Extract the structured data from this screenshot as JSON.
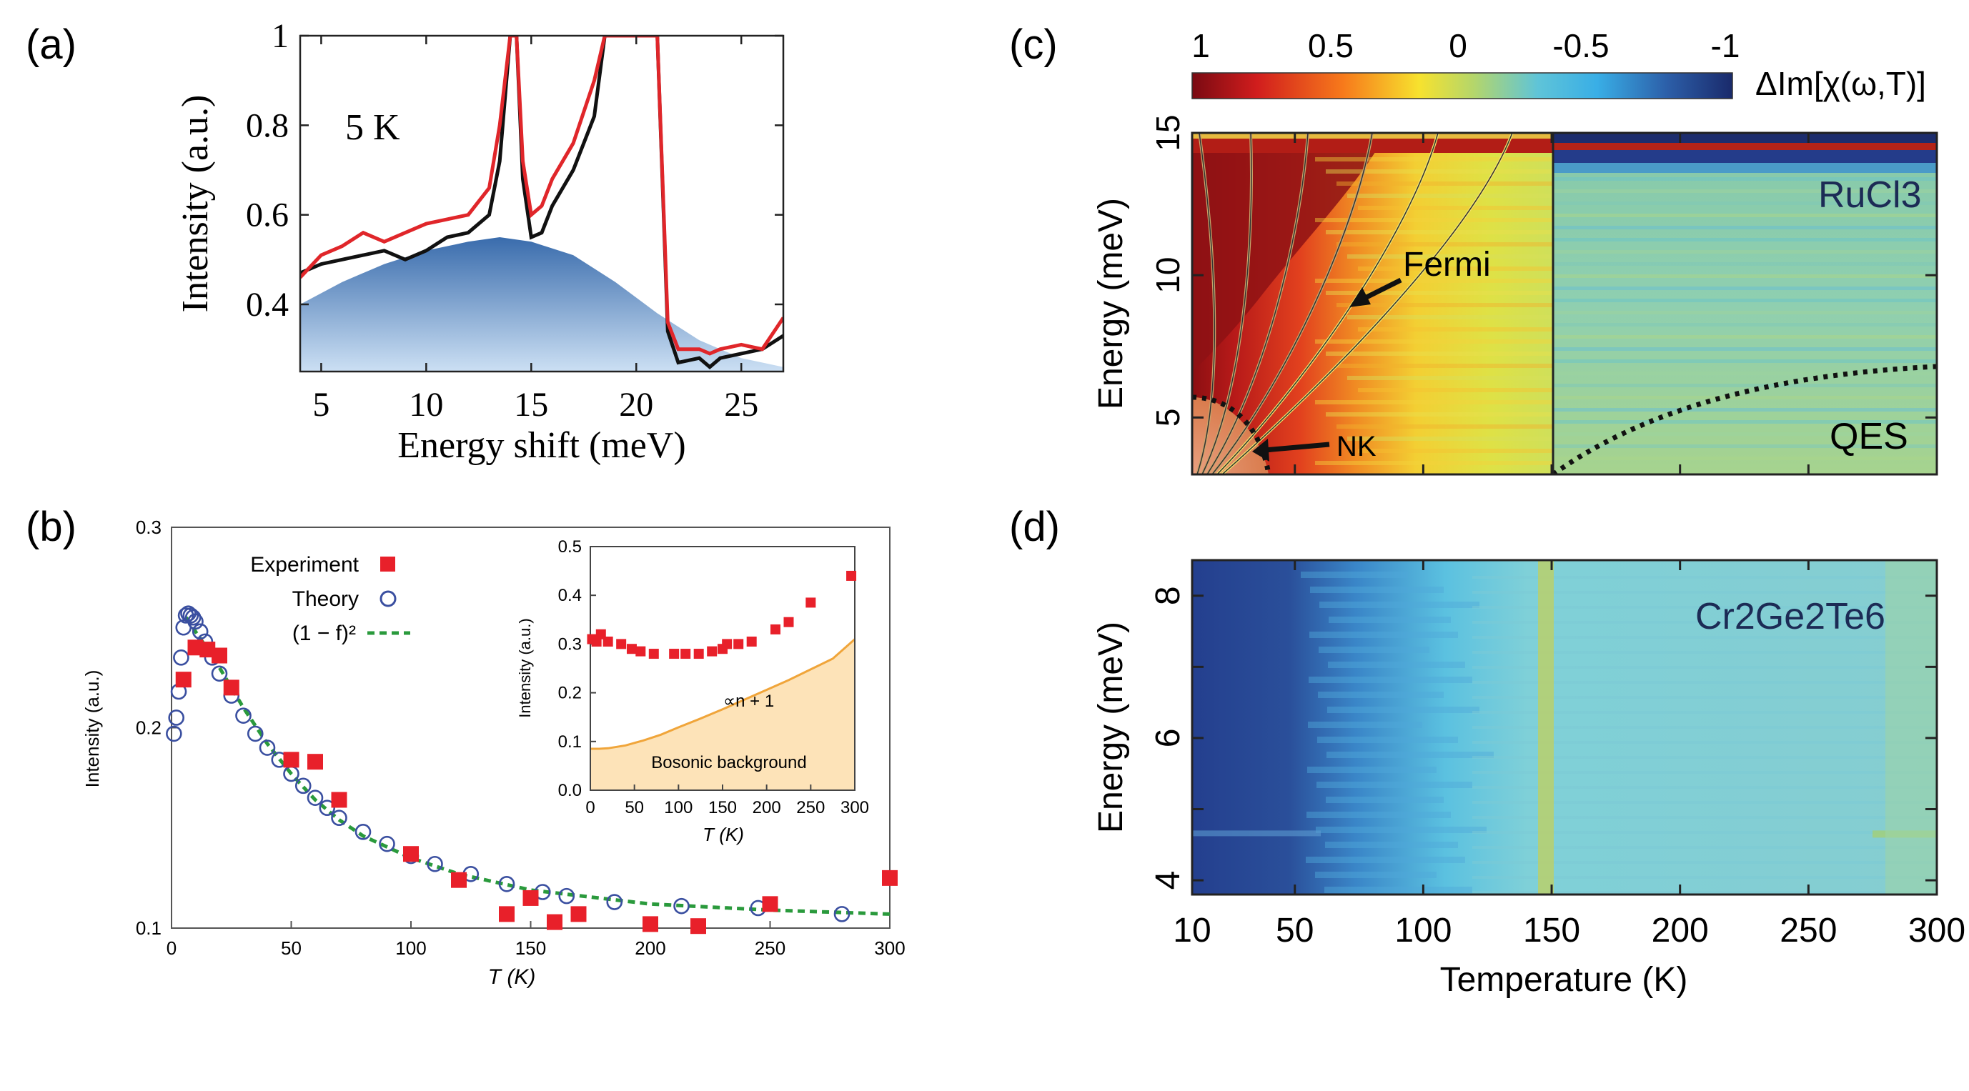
{
  "panels": {
    "a": {
      "label": "(a)"
    },
    "b": {
      "label": "(b)"
    },
    "c": {
      "label": "(c)"
    },
    "d": {
      "label": "(d)"
    }
  },
  "colors": {
    "black_curve": "#111111",
    "red_curve": "#e0262a",
    "blue_fill_dark": "#2f64a8",
    "blue_fill_light": "#bcd6ef",
    "experiment": "#e8202a",
    "theory": "#3a4fa0",
    "fit": "#2a9a3c",
    "inset_fill": "#fde3b8",
    "inset_line": "#f0a53a"
  },
  "chart_data": [
    {
      "id": "a",
      "type": "line",
      "xlabel": "Energy shift (meV)",
      "ylabel": "Intensity (a.u.)",
      "xlim": [
        4,
        27
      ],
      "ylim": [
        0.25,
        1.0
      ],
      "xticks": [
        "5",
        "10",
        "15",
        "20",
        "25"
      ],
      "yticks": [
        "1",
        "0.8",
        "0.6",
        "0.4"
      ],
      "annotation": "5 K",
      "series": [
        {
          "name": "black",
          "x": [
            4,
            5,
            6,
            7,
            8,
            9,
            10,
            11,
            12,
            13,
            13.5,
            14,
            14.3,
            14.6,
            15,
            15.5,
            16,
            17,
            18,
            18.5,
            19,
            21,
            21.5,
            22,
            23,
            23.5,
            24,
            25,
            26,
            27
          ],
          "y": [
            0.47,
            0.49,
            0.5,
            0.51,
            0.52,
            0.5,
            0.52,
            0.55,
            0.56,
            0.6,
            0.72,
            1.0,
            1.0,
            0.68,
            0.55,
            0.56,
            0.62,
            0.7,
            0.82,
            1.0,
            1.0,
            1.0,
            0.34,
            0.27,
            0.28,
            0.26,
            0.28,
            0.29,
            0.3,
            0.33
          ]
        },
        {
          "name": "red",
          "x": [
            4,
            5,
            6,
            7,
            8,
            9,
            10,
            11,
            12,
            13,
            13.5,
            14,
            14.3,
            14.6,
            15,
            15.5,
            16,
            17,
            18,
            18.5,
            19,
            21,
            21.5,
            22,
            23,
            23.5,
            24,
            25,
            26,
            27
          ],
          "y": [
            0.46,
            0.51,
            0.53,
            0.56,
            0.54,
            0.56,
            0.58,
            0.59,
            0.6,
            0.66,
            0.8,
            1.0,
            1.0,
            0.72,
            0.6,
            0.62,
            0.68,
            0.76,
            0.9,
            1.0,
            1.0,
            1.0,
            0.36,
            0.3,
            0.3,
            0.29,
            0.3,
            0.31,
            0.3,
            0.37
          ]
        },
        {
          "name": "bosonic background (filled)",
          "x": [
            4,
            6,
            8,
            10,
            12,
            13.5,
            15,
            17,
            19,
            21,
            23,
            25,
            27
          ],
          "y": [
            0.4,
            0.45,
            0.49,
            0.52,
            0.54,
            0.55,
            0.54,
            0.51,
            0.45,
            0.38,
            0.32,
            0.28,
            0.26
          ]
        }
      ]
    },
    {
      "id": "b",
      "type": "scatter",
      "xlabel": "T (K)",
      "ylabel": "Intensity (a.u.)",
      "xlim": [
        0,
        300
      ],
      "ylim": [
        0.1,
        0.3
      ],
      "xticks": [
        "0",
        "50",
        "100",
        "150",
        "200",
        "250",
        "300"
      ],
      "yticks": [
        "0.1",
        "0.2",
        "0.3"
      ],
      "legend": [
        "Experiment",
        "Theory",
        "(1 − f)²"
      ],
      "series": [
        {
          "name": "Experiment",
          "x": [
            5,
            10,
            15,
            20,
            25,
            50,
            60,
            70,
            100,
            120,
            140,
            150,
            160,
            170,
            200,
            220,
            250,
            300
          ],
          "y": [
            0.224,
            0.24,
            0.239,
            0.236,
            0.22,
            0.184,
            0.183,
            0.164,
            0.137,
            0.124,
            0.107,
            0.115,
            0.103,
            0.107,
            0.102,
            0.101,
            0.112,
            0.125
          ]
        },
        {
          "name": "Theory",
          "x": [
            1,
            2,
            3,
            4,
            5,
            6,
            7,
            8,
            9,
            10,
            12,
            14,
            17,
            20,
            25,
            30,
            35,
            40,
            45,
            50,
            55,
            60,
            65,
            70,
            80,
            90,
            100,
            110,
            125,
            140,
            155,
            165,
            185,
            213,
            245,
            280
          ],
          "y": [
            0.197,
            0.205,
            0.218,
            0.235,
            0.25,
            0.256,
            0.257,
            0.256,
            0.255,
            0.253,
            0.248,
            0.243,
            0.235,
            0.227,
            0.216,
            0.206,
            0.197,
            0.19,
            0.184,
            0.177,
            0.171,
            0.165,
            0.16,
            0.155,
            0.148,
            0.142,
            0.136,
            0.132,
            0.127,
            0.122,
            0.118,
            0.116,
            0.113,
            0.111,
            0.11,
            0.107
          ]
        },
        {
          "name": "(1 − f)²",
          "x": [
            6,
            8,
            10,
            14,
            20,
            30,
            40,
            50,
            60,
            70,
            80,
            100,
            120,
            150,
            200,
            250,
            300
          ],
          "y": [
            0.255,
            0.252,
            0.248,
            0.241,
            0.23,
            0.21,
            0.192,
            0.177,
            0.164,
            0.154,
            0.146,
            0.135,
            0.127,
            0.119,
            0.112,
            0.109,
            0.107
          ]
        }
      ],
      "inset": {
        "xlabel": "T (K)",
        "ylabel": "Intensity (a.u.)",
        "xlim": [
          0,
          300
        ],
        "ylim": [
          0.0,
          0.5
        ],
        "xticks": [
          "0",
          "50",
          "100",
          "150",
          "200",
          "250",
          "300"
        ],
        "yticks": [
          "0.0",
          "0.1",
          "0.2",
          "0.3",
          "0.4",
          "0.5"
        ],
        "text_curve": "∝n + 1",
        "text_fill": "Bosonic background",
        "series": [
          {
            "name": "data",
            "x": [
              2,
              7,
              12,
              20,
              35,
              47,
              57,
              72,
              95,
              108,
              123,
              138,
              150,
              155,
              168,
              183,
              210,
              225,
              250,
              296
            ],
            "y": [
              0.31,
              0.305,
              0.32,
              0.305,
              0.3,
              0.29,
              0.285,
              0.28,
              0.28,
              0.28,
              0.28,
              0.285,
              0.29,
              0.3,
              0.3,
              0.305,
              0.33,
              0.345,
              0.385,
              0.44
            ]
          },
          {
            "name": "∝n + 1",
            "x": [
              0,
              10,
              20,
              40,
              60,
              80,
              100,
              125,
              150,
              175,
              200,
              225,
              250,
              275,
              300
            ],
            "y": [
              0.085,
              0.085,
              0.086,
              0.092,
              0.102,
              0.114,
              0.129,
              0.147,
              0.166,
              0.186,
              0.206,
              0.226,
              0.248,
              0.27,
              0.31
            ]
          }
        ]
      }
    },
    {
      "id": "c",
      "type": "heatmap",
      "xlabel": "Temperature (K)",
      "ylabel": "Energy (meV)",
      "xlim": [
        10,
        300
      ],
      "ylim": [
        3,
        15
      ],
      "yticks": [
        "5",
        "10",
        "15"
      ],
      "colorbar": {
        "label": "ΔIm[χ(ω,T)]",
        "ticks": [
          "1",
          "0.5",
          "0",
          "-0.5",
          "-1"
        ],
        "range": [
          1,
          -1
        ]
      },
      "annotations": [
        "Fermi",
        "NK",
        "RuCl3",
        "QES"
      ],
      "divider_temperature": 150
    },
    {
      "id": "d",
      "type": "heatmap",
      "xlabel": "Temperature (K)",
      "ylabel": "Energy (meV)",
      "xlim": [
        10,
        300
      ],
      "ylim": [
        3.8,
        8.5
      ],
      "xticks": [
        "10",
        "50",
        "100",
        "150",
        "200",
        "250",
        "300"
      ],
      "yticks": [
        "4",
        "6",
        "8"
      ],
      "annotations": [
        "Cr2Ge2Te6"
      ]
    }
  ]
}
